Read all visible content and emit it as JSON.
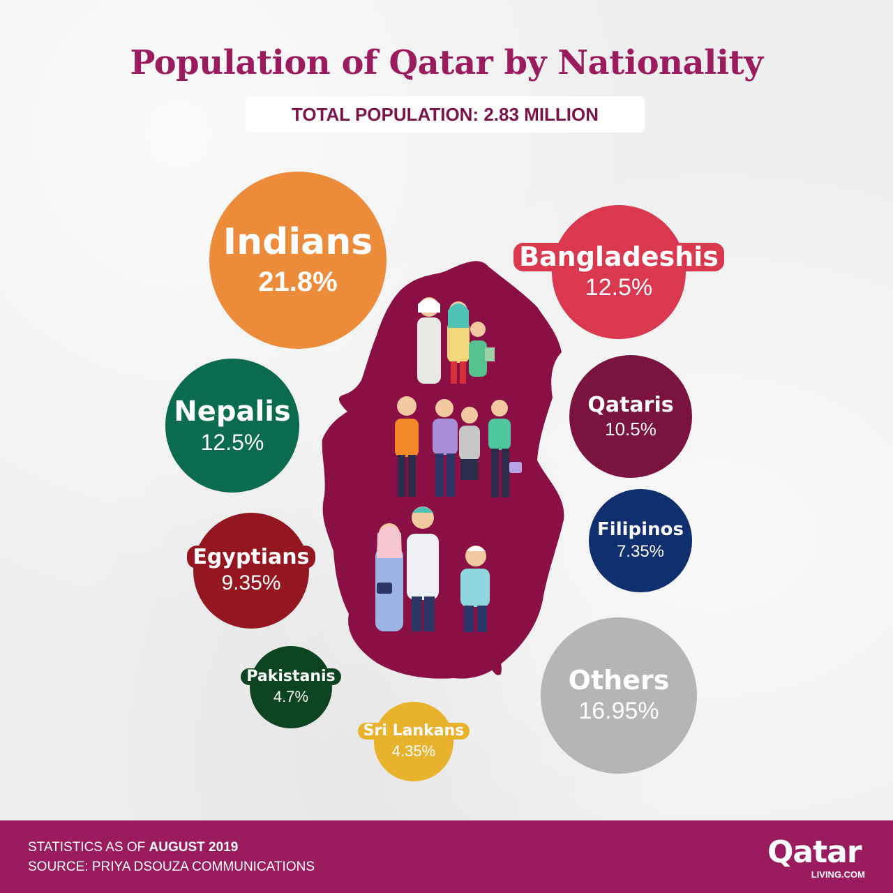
{
  "header": {
    "title": "Population of Qatar by Nationality",
    "total": "TOTAL POPULATION: 2.83 MILLION"
  },
  "chart_data": {
    "type": "bubble",
    "title": "Population of Qatar by Nationality",
    "subtitle": "TOTAL POPULATION: 2.83 MILLION",
    "unit": "%",
    "series": [
      {
        "name": "Indians",
        "label": "21.8%",
        "value": 21.8,
        "color": "#ec8b3a"
      },
      {
        "name": "Bangladeshis",
        "label": "12.5%",
        "value": 12.5,
        "color": "#d9384e"
      },
      {
        "name": "Nepalis",
        "label": "12.5%",
        "value": 12.5,
        "color": "#0a6b4e"
      },
      {
        "name": "Qataris",
        "label": "10.5%",
        "value": 10.5,
        "color": "#7a1340"
      },
      {
        "name": "Filipinos",
        "label": "7.35%",
        "value": 7.35,
        "color": "#0f2f6e"
      },
      {
        "name": "Egyptians",
        "label": "9.35%",
        "value": 9.35,
        "color": "#941620"
      },
      {
        "name": "Pakistanis",
        "label": "4.7%",
        "value": 4.7,
        "color": "#0c4421"
      },
      {
        "name": "Sri Lankans",
        "label": "4.35%",
        "value": 4.35,
        "color": "#e8b22c"
      },
      {
        "name": "Others",
        "label": "16.95%",
        "value": 16.95,
        "color": "#b5b5b5"
      }
    ]
  },
  "footer": {
    "stats_prefix": "STATISTICS AS OF ",
    "stats_date": "AUGUST 2019",
    "source": "SOURCE: PRIYA DSOUZA COMMUNICATIONS",
    "logo_word": "Qatar",
    "logo_sub": "LIVING.COM"
  },
  "colors": {
    "brand": "#9b1b5f",
    "map": "#8a0f45"
  }
}
